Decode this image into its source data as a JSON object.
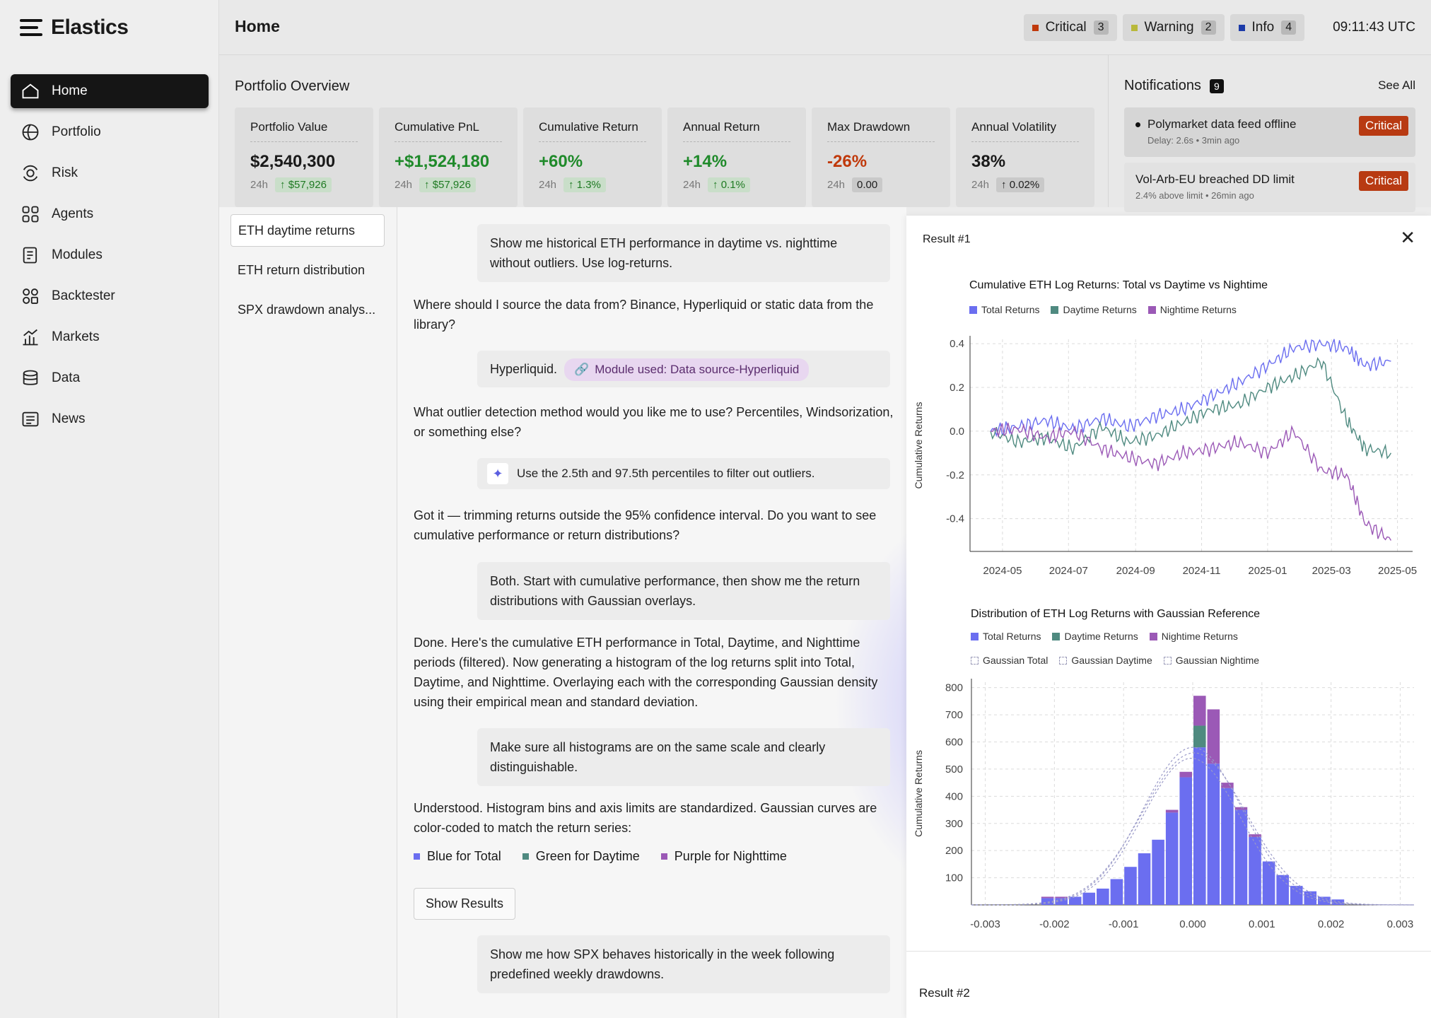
{
  "app": {
    "name": "Elastics"
  },
  "sidebar": {
    "items": [
      {
        "label": "Home",
        "icon": "home-icon"
      },
      {
        "label": "Portfolio",
        "icon": "globe-icon"
      },
      {
        "label": "Risk",
        "icon": "radar-icon"
      },
      {
        "label": "Agents",
        "icon": "agents-icon"
      },
      {
        "label": "Modules",
        "icon": "modules-icon"
      },
      {
        "label": "Backtester",
        "icon": "grid-icon"
      },
      {
        "label": "Markets",
        "icon": "markets-icon"
      },
      {
        "label": "Data",
        "icon": "database-icon"
      },
      {
        "label": "News",
        "icon": "news-icon"
      }
    ]
  },
  "header": {
    "title": "Home",
    "clock": "09:11:43 UTC",
    "alerts": [
      {
        "label": "Critical",
        "count": "3",
        "color": "#c0390b"
      },
      {
        "label": "Warning",
        "count": "2",
        "color": "#b8b83a"
      },
      {
        "label": "Info",
        "count": "4",
        "color": "#1c3aa8"
      }
    ]
  },
  "overview": {
    "title": "Portfolio Overview",
    "kpis": [
      {
        "label": "Portfolio Value",
        "value": "$2,540,300",
        "period": "24h",
        "change": "$57,926"
      },
      {
        "label": "Cumulative PnL",
        "value": "+$1,524,180",
        "period": "24h",
        "change": "$57,926"
      },
      {
        "label": "Cumulative Return",
        "value": "+60%",
        "period": "24h",
        "change": "1.3%"
      },
      {
        "label": "Annual Return",
        "value": "+14%",
        "period": "24h",
        "change": "0.1%"
      },
      {
        "label": "Max Drawdown",
        "value": "-26%",
        "period": "24h",
        "change": "0.00"
      },
      {
        "label": "Annual Volatility",
        "value": "38%",
        "period": "24h",
        "change": "0.02%"
      }
    ]
  },
  "notifications": {
    "title": "Notifications",
    "count": "9",
    "see_all": "See All",
    "items": [
      {
        "title": "Polymarket data feed offline",
        "meta": "Delay: 2.6s • 3min ago",
        "level": "Critical"
      },
      {
        "title": "Vol-Arb-EU breached DD limit",
        "meta": "2.4% above limit • 26min ago",
        "level": "Critical"
      }
    ]
  },
  "conversations": [
    "ETH daytime returns",
    "ETH return distribution",
    "SPX drawdown analys..."
  ],
  "chat": {
    "u1": "Show me historical ETH performance in daytime vs. nighttime without outliers. Use log-returns.",
    "a1": "Where should I source the data from? Binance, Hyperliquid or static data from the library?",
    "u2": "Hyperliquid.",
    "u2_module": "Module used: Data source-Hyperliquid",
    "a2": "What outlier detection method would you like me to use? Percentiles, Windsorization, or something else?",
    "u3": "Use the 2.5th and 97.5th percentiles to filter out outliers.",
    "a3": "Got it — trimming returns outside the 95% confidence interval. Do you want to see cumulative performance or return distributions?",
    "u4": "Both. Start with cumulative performance, then show me the return distributions with Gaussian overlays.",
    "a4": "Done. Here's the cumulative ETH performance in Total, Daytime, and Nighttime periods (filtered). Now generating a histogram of the log returns split into Total, Daytime, and Nighttime. Overlaying each with the corresponding Gaussian density using their empirical mean and standard deviation.",
    "u5": "Make sure all histograms are on the same scale and clearly distinguishable.",
    "a5": "Understood. Histogram bins and axis limits are standardized. Gaussian curves are color-coded to match the return series:",
    "color_legend": [
      {
        "label": "Blue for Total",
        "color": "#6b6ef0"
      },
      {
        "label": "Green for Daytime",
        "color": "#4f8a80"
      },
      {
        "label": "Purple for Nighttime",
        "color": "#9b59b6"
      }
    ],
    "show_results": "Show Results",
    "u6": "Show me how SPX behaves historically in the week following predefined weekly drawdowns."
  },
  "results": {
    "title1": "Result #1",
    "title2": "Result #2"
  },
  "chart_data": [
    {
      "type": "line",
      "title": "Cumulative ETH Log Returns: Total vs Daytime vs Nightime",
      "ylabel": "Cumulative Returns",
      "xlabel": "",
      "x_ticks": [
        "2024-05",
        "2024-07",
        "2024-09",
        "2024-11",
        "2025-01",
        "2025-03",
        "2025-05"
      ],
      "y_ticks": [
        "0.4",
        "0.2",
        "0.0",
        "-0.2",
        "-0.4"
      ],
      "ylim": [
        -0.55,
        0.42
      ],
      "x": [
        "2024-04-20",
        "2024-05-15",
        "2024-06-10",
        "2024-07-05",
        "2024-08-01",
        "2024-08-25",
        "2024-09-20",
        "2024-10-15",
        "2024-11-10",
        "2024-12-05",
        "2025-01-01",
        "2025-01-25",
        "2025-02-20",
        "2025-03-15",
        "2025-04-01",
        "2025-04-25"
      ],
      "series": [
        {
          "name": "Total Returns",
          "color": "#6b6ef0",
          "values": [
            0.0,
            0.02,
            0.05,
            0.01,
            0.06,
            0.02,
            0.07,
            0.1,
            0.16,
            0.22,
            0.3,
            0.38,
            0.4,
            0.38,
            0.3,
            0.32
          ]
        },
        {
          "name": "Daytime Returns",
          "color": "#4f8a80",
          "values": [
            0.0,
            -0.05,
            -0.03,
            -0.08,
            0.02,
            -0.05,
            -0.02,
            0.04,
            0.1,
            0.12,
            0.2,
            0.25,
            0.32,
            0.05,
            -0.08,
            -0.1
          ]
        },
        {
          "name": "Nightime Returns",
          "color": "#9b59b6",
          "values": [
            0.0,
            0.01,
            -0.03,
            0.0,
            -0.08,
            -0.12,
            -0.15,
            -0.1,
            -0.08,
            -0.05,
            -0.1,
            0.0,
            -0.18,
            -0.2,
            -0.42,
            -0.5
          ]
        }
      ],
      "grid": true,
      "legend": "top-left"
    },
    {
      "type": "bar",
      "title": "Distribution of ETH Log Returns with Gaussian Reference",
      "ylabel": "Cumulative Returns",
      "xlabel": "",
      "x_ticks": [
        "-0.003",
        "-0.002",
        "-0.001",
        "0.000",
        "0.001",
        "0.002",
        "0.003"
      ],
      "y_ticks": [
        "800",
        "700",
        "600",
        "500",
        "400",
        "300",
        "200",
        "100"
      ],
      "ylim": [
        0,
        820
      ],
      "bin_centers": [
        -0.0021,
        -0.0019,
        -0.0017,
        -0.0015,
        -0.0013,
        -0.0011,
        -0.0009,
        -0.0007,
        -0.0005,
        -0.0003,
        -0.0001,
        0.0001,
        0.0003,
        0.0005,
        0.0007,
        0.0009,
        0.0011,
        0.0013,
        0.0015,
        0.0017,
        0.0019,
        0.0021
      ],
      "series": [
        {
          "name": "Total Returns",
          "color": "#6b6ef0",
          "values": [
            25,
            25,
            30,
            45,
            60,
            95,
            140,
            190,
            240,
            340,
            470,
            580,
            520,
            430,
            350,
            250,
            160,
            110,
            70,
            50,
            30,
            20
          ]
        },
        {
          "name": "Daytime Returns",
          "color": "#4f8a80",
          "values": [
            0,
            0,
            0,
            0,
            0,
            0,
            0,
            0,
            0,
            0,
            0,
            80,
            0,
            0,
            0,
            0,
            0,
            0,
            0,
            0,
            0,
            0
          ]
        },
        {
          "name": "Nightime Returns",
          "color": "#9b59b6",
          "values": [
            5,
            5,
            0,
            0,
            0,
            0,
            0,
            0,
            0,
            10,
            20,
            110,
            200,
            20,
            10,
            10,
            0,
            0,
            0,
            0,
            0,
            0
          ]
        }
      ],
      "gaussians": [
        {
          "name": "Gaussian Total"
        },
        {
          "name": "Gaussian Daytime"
        },
        {
          "name": "Gaussian Nightime"
        }
      ],
      "grid": true,
      "legend": "top-left"
    }
  ]
}
